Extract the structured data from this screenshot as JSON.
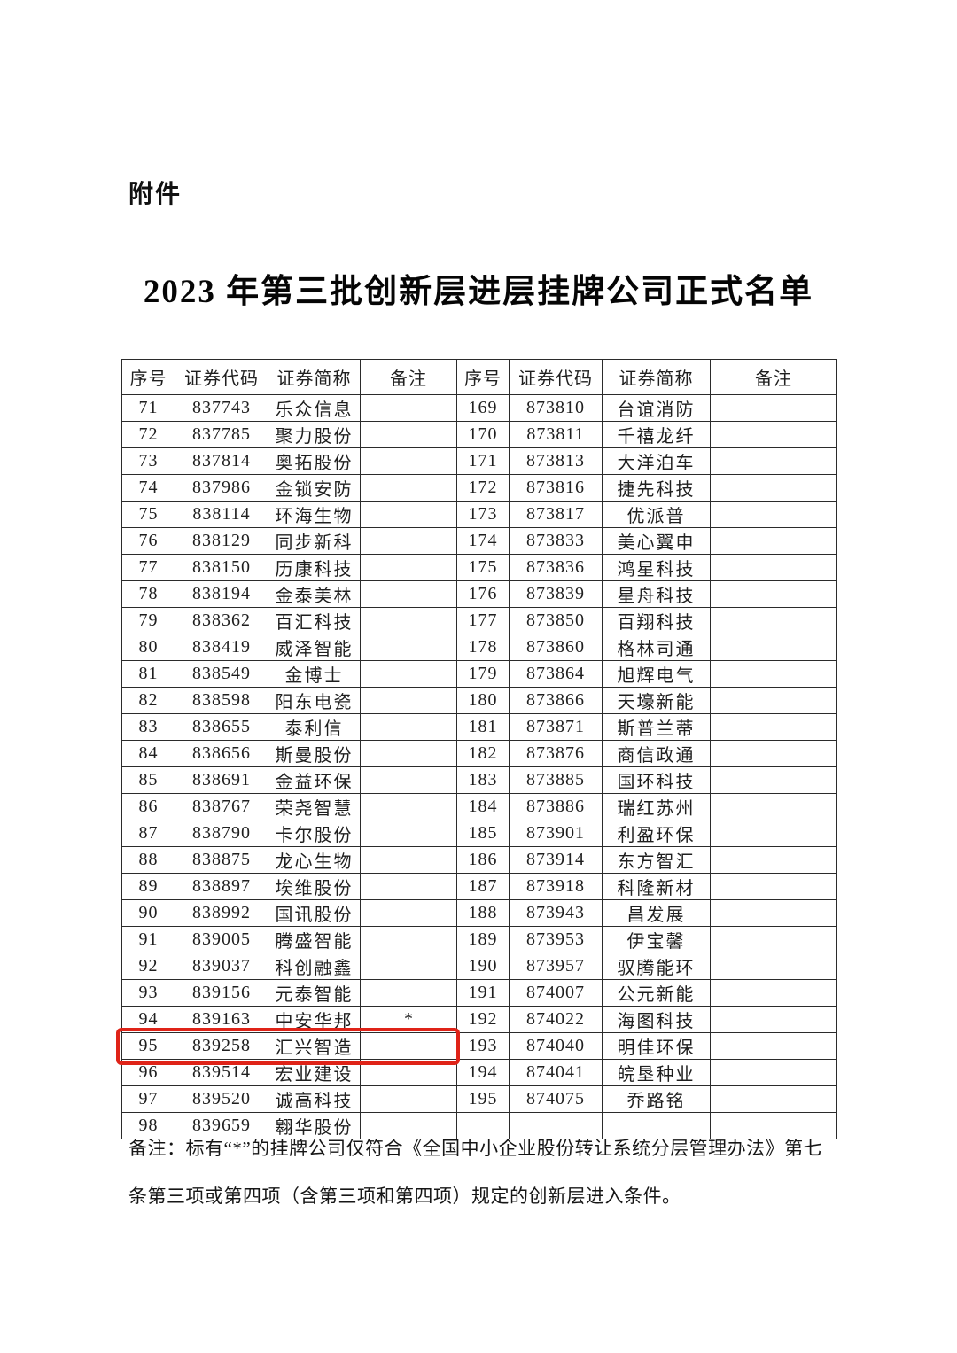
{
  "page": {
    "attachment_label": "附件",
    "title": "2023 年第三批创新层进层挂牌公司正式名单"
  },
  "table": {
    "headers": [
      "序号",
      "证券代码",
      "证券简称",
      "备注",
      "序号",
      "证券代码",
      "证券简称",
      "备注"
    ],
    "highlight_color": "#df2318",
    "rows": [
      {
        "left": {
          "seq": "71",
          "code": "837743",
          "name": "乐众信息",
          "remark": ""
        },
        "right": {
          "seq": "169",
          "code": "873810",
          "name": "台谊消防",
          "remark": ""
        },
        "highlight": false
      },
      {
        "left": {
          "seq": "72",
          "code": "837785",
          "name": "聚力股份",
          "remark": ""
        },
        "right": {
          "seq": "170",
          "code": "873811",
          "name": "千禧龙纤",
          "remark": ""
        },
        "highlight": false
      },
      {
        "left": {
          "seq": "73",
          "code": "837814",
          "name": "奥拓股份",
          "remark": ""
        },
        "right": {
          "seq": "171",
          "code": "873813",
          "name": "大洋泊车",
          "remark": ""
        },
        "highlight": false
      },
      {
        "left": {
          "seq": "74",
          "code": "837986",
          "name": "金锁安防",
          "remark": ""
        },
        "right": {
          "seq": "172",
          "code": "873816",
          "name": "捷先科技",
          "remark": ""
        },
        "highlight": false
      },
      {
        "left": {
          "seq": "75",
          "code": "838114",
          "name": "环海生物",
          "remark": ""
        },
        "right": {
          "seq": "173",
          "code": "873817",
          "name": "优派普",
          "remark": ""
        },
        "highlight": false
      },
      {
        "left": {
          "seq": "76",
          "code": "838129",
          "name": "同步新科",
          "remark": ""
        },
        "right": {
          "seq": "174",
          "code": "873833",
          "name": "美心翼申",
          "remark": ""
        },
        "highlight": false
      },
      {
        "left": {
          "seq": "77",
          "code": "838150",
          "name": "历康科技",
          "remark": ""
        },
        "right": {
          "seq": "175",
          "code": "873836",
          "name": "鸿星科技",
          "remark": ""
        },
        "highlight": false
      },
      {
        "left": {
          "seq": "78",
          "code": "838194",
          "name": "金泰美林",
          "remark": ""
        },
        "right": {
          "seq": "176",
          "code": "873839",
          "name": "星舟科技",
          "remark": ""
        },
        "highlight": false
      },
      {
        "left": {
          "seq": "79",
          "code": "838362",
          "name": "百汇科技",
          "remark": ""
        },
        "right": {
          "seq": "177",
          "code": "873850",
          "name": "百翔科技",
          "remark": ""
        },
        "highlight": false
      },
      {
        "left": {
          "seq": "80",
          "code": "838419",
          "name": "威泽智能",
          "remark": ""
        },
        "right": {
          "seq": "178",
          "code": "873860",
          "name": "格林司通",
          "remark": ""
        },
        "highlight": false
      },
      {
        "left": {
          "seq": "81",
          "code": "838549",
          "name": "金博士",
          "remark": ""
        },
        "right": {
          "seq": "179",
          "code": "873864",
          "name": "旭辉电气",
          "remark": ""
        },
        "highlight": false
      },
      {
        "left": {
          "seq": "82",
          "code": "838598",
          "name": "阳东电瓷",
          "remark": ""
        },
        "right": {
          "seq": "180",
          "code": "873866",
          "name": "天壕新能",
          "remark": ""
        },
        "highlight": false
      },
      {
        "left": {
          "seq": "83",
          "code": "838655",
          "name": "泰利信",
          "remark": ""
        },
        "right": {
          "seq": "181",
          "code": "873871",
          "name": "斯普兰蒂",
          "remark": ""
        },
        "highlight": false
      },
      {
        "left": {
          "seq": "84",
          "code": "838656",
          "name": "斯曼股份",
          "remark": ""
        },
        "right": {
          "seq": "182",
          "code": "873876",
          "name": "商信政通",
          "remark": ""
        },
        "highlight": false
      },
      {
        "left": {
          "seq": "85",
          "code": "838691",
          "name": "金益环保",
          "remark": ""
        },
        "right": {
          "seq": "183",
          "code": "873885",
          "name": "国环科技",
          "remark": ""
        },
        "highlight": false
      },
      {
        "left": {
          "seq": "86",
          "code": "838767",
          "name": "荣尧智慧",
          "remark": ""
        },
        "right": {
          "seq": "184",
          "code": "873886",
          "name": "瑞红苏州",
          "remark": ""
        },
        "highlight": false
      },
      {
        "left": {
          "seq": "87",
          "code": "838790",
          "name": "卡尔股份",
          "remark": ""
        },
        "right": {
          "seq": "185",
          "code": "873901",
          "name": "利盈环保",
          "remark": ""
        },
        "highlight": false
      },
      {
        "left": {
          "seq": "88",
          "code": "838875",
          "name": "龙心生物",
          "remark": ""
        },
        "right": {
          "seq": "186",
          "code": "873914",
          "name": "东方智汇",
          "remark": ""
        },
        "highlight": false
      },
      {
        "left": {
          "seq": "89",
          "code": "838897",
          "name": "埃维股份",
          "remark": ""
        },
        "right": {
          "seq": "187",
          "code": "873918",
          "name": "科隆新材",
          "remark": ""
        },
        "highlight": false
      },
      {
        "left": {
          "seq": "90",
          "code": "838992",
          "name": "国讯股份",
          "remark": ""
        },
        "right": {
          "seq": "188",
          "code": "873943",
          "name": "昌发展",
          "remark": ""
        },
        "highlight": false
      },
      {
        "left": {
          "seq": "91",
          "code": "839005",
          "name": "腾盛智能",
          "remark": ""
        },
        "right": {
          "seq": "189",
          "code": "873953",
          "name": "伊宝馨",
          "remark": ""
        },
        "highlight": false
      },
      {
        "left": {
          "seq": "92",
          "code": "839037",
          "name": "科创融鑫",
          "remark": ""
        },
        "right": {
          "seq": "190",
          "code": "873957",
          "name": "驭腾能环",
          "remark": ""
        },
        "highlight": false
      },
      {
        "left": {
          "seq": "93",
          "code": "839156",
          "name": "元泰智能",
          "remark": ""
        },
        "right": {
          "seq": "191",
          "code": "874007",
          "name": "公元新能",
          "remark": ""
        },
        "highlight": false
      },
      {
        "left": {
          "seq": "94",
          "code": "839163",
          "name": "中安华邦",
          "remark": "*"
        },
        "right": {
          "seq": "192",
          "code": "874022",
          "name": "海图科技",
          "remark": ""
        },
        "highlight": false
      },
      {
        "left": {
          "seq": "95",
          "code": "839258",
          "name": "汇兴智造",
          "remark": ""
        },
        "right": {
          "seq": "193",
          "code": "874040",
          "name": "明佳环保",
          "remark": ""
        },
        "highlight": true
      },
      {
        "left": {
          "seq": "96",
          "code": "839514",
          "name": "宏业建设",
          "remark": ""
        },
        "right": {
          "seq": "194",
          "code": "874041",
          "name": "皖垦种业",
          "remark": ""
        },
        "highlight": false
      },
      {
        "left": {
          "seq": "97",
          "code": "839520",
          "name": "诚高科技",
          "remark": ""
        },
        "right": {
          "seq": "195",
          "code": "874075",
          "name": "乔路铭",
          "remark": ""
        },
        "highlight": false
      },
      {
        "left": {
          "seq": "98",
          "code": "839659",
          "name": "翱华股份",
          "remark": ""
        },
        "right": {
          "seq": "",
          "code": "",
          "name": "",
          "remark": ""
        },
        "highlight": false
      }
    ]
  },
  "footnote": {
    "line1": "备注：标有“*”的挂牌公司仅符合《全国中小企业股份转让系统分层管理办法》第七",
    "line2": "条第三项或第四项（含第三项和第四项）规定的创新层进入条件。"
  }
}
